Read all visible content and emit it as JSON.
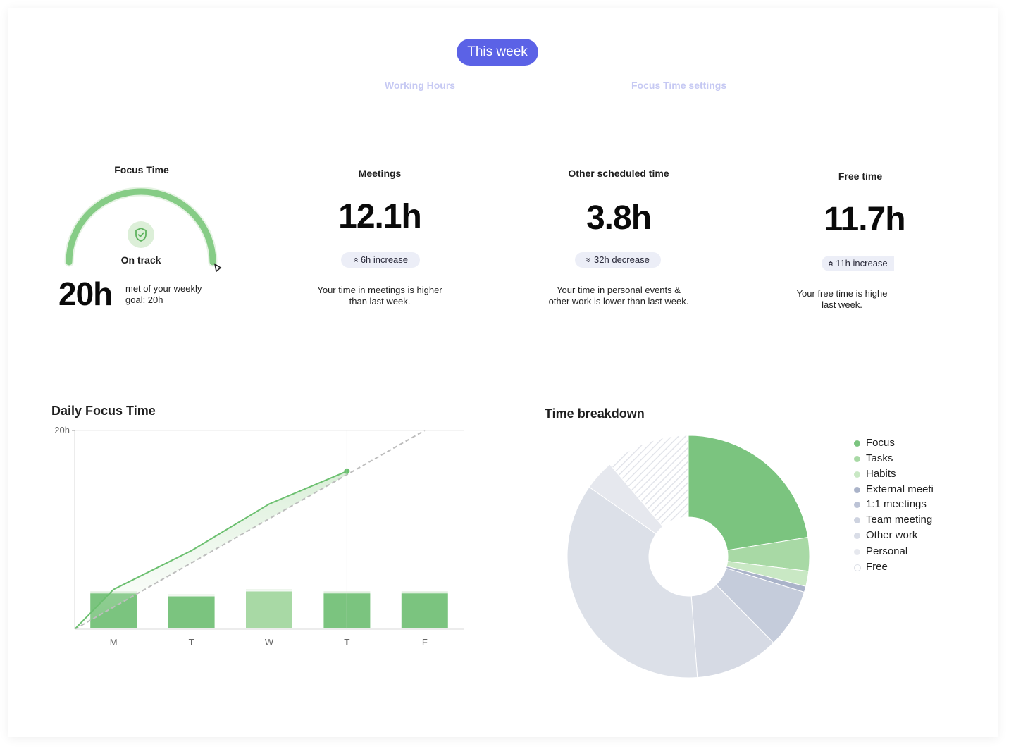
{
  "header": {
    "period_label": "This week",
    "links": [
      "Working Hours",
      "Focus Time settings"
    ]
  },
  "focus_time": {
    "title": "Focus Time",
    "status": "On track",
    "value": "20h",
    "goal_text_line1": "met of your weekly",
    "goal_text_line2": "goal: 20h",
    "progress_fraction": 1.0
  },
  "stats": [
    {
      "title": "Meetings",
      "value": "12.1h",
      "chip": "6h increase",
      "chip_direction": "up",
      "desc_line1": "Your time in meetings is higher",
      "desc_line2": "than last week."
    },
    {
      "title": "Other scheduled time",
      "value": "3.8h",
      "chip": "32h decrease",
      "chip_direction": "down",
      "desc_line1": "Your time in personal events &",
      "desc_line2": "other work is lower than last week."
    },
    {
      "title": "Free time",
      "value": "11.7h",
      "chip": "11h increase",
      "chip_direction": "up",
      "desc_line1": "Your free time is highe",
      "desc_line2": "last week."
    }
  ],
  "daily_focus": {
    "title": "Daily Focus Time"
  },
  "time_breakdown": {
    "title": "Time breakdown"
  },
  "legend": [
    {
      "label": "Focus",
      "color": "#7bc47f"
    },
    {
      "label": "Tasks",
      "color": "#a8d9a5"
    },
    {
      "label": "Habits",
      "color": "#c9e8c4"
    },
    {
      "label": "External meeti",
      "color": "#aab3c9"
    },
    {
      "label": "1:1 meetings",
      "color": "#bcc3d6"
    },
    {
      "label": "Team meeting",
      "color": "#ced3e0"
    },
    {
      "label": "Other work",
      "color": "#d9dde7"
    },
    {
      "label": "Personal",
      "color": "#e6e8ee"
    },
    {
      "label": "Free",
      "color": "#ffffff"
    }
  ],
  "chart_data": [
    {
      "type": "bar",
      "title": "Daily Focus Time",
      "categories": [
        "M",
        "T",
        "W",
        "T",
        "F"
      ],
      "highlight_category_index": 3,
      "values": [
        3.6,
        3.3,
        3.8,
        3.6,
        3.6
      ],
      "ylim": [
        0,
        20
      ],
      "y_tick_labels": [
        "20h"
      ],
      "series": [
        {
          "name": "Cumulative focus",
          "type": "line",
          "x": [
            0,
            0.5,
            1.5,
            2.5,
            3.5
          ],
          "values": [
            0,
            4.0,
            7.9,
            12.6,
            15.9
          ]
        },
        {
          "name": "Goal pace",
          "type": "line",
          "style": "dashed",
          "x": [
            0,
            4.5
          ],
          "values": [
            0,
            20
          ]
        }
      ],
      "colors": {
        "bar": "#7bc47f",
        "bar_light": "#a8d9a5",
        "line": "#6cc070",
        "goal": "#bdbdbd"
      }
    },
    {
      "type": "pie",
      "title": "Time breakdown",
      "labels": [
        "Focus",
        "Tasks",
        "Habits",
        "External meeti",
        "1:1 meetings",
        "Team meeting",
        "Other work",
        "Personal",
        "Free"
      ],
      "values": [
        20,
        4,
        1.8,
        0.7,
        7,
        10,
        32,
        3.6,
        10
      ],
      "colors": [
        "#7bc47f",
        "#a8d9a5",
        "#c9e8c4",
        "#aab3c9",
        "#c5ccdb",
        "#d6dae4",
        "#dce0e8",
        "#e6e8ee",
        "hatch"
      ]
    }
  ]
}
